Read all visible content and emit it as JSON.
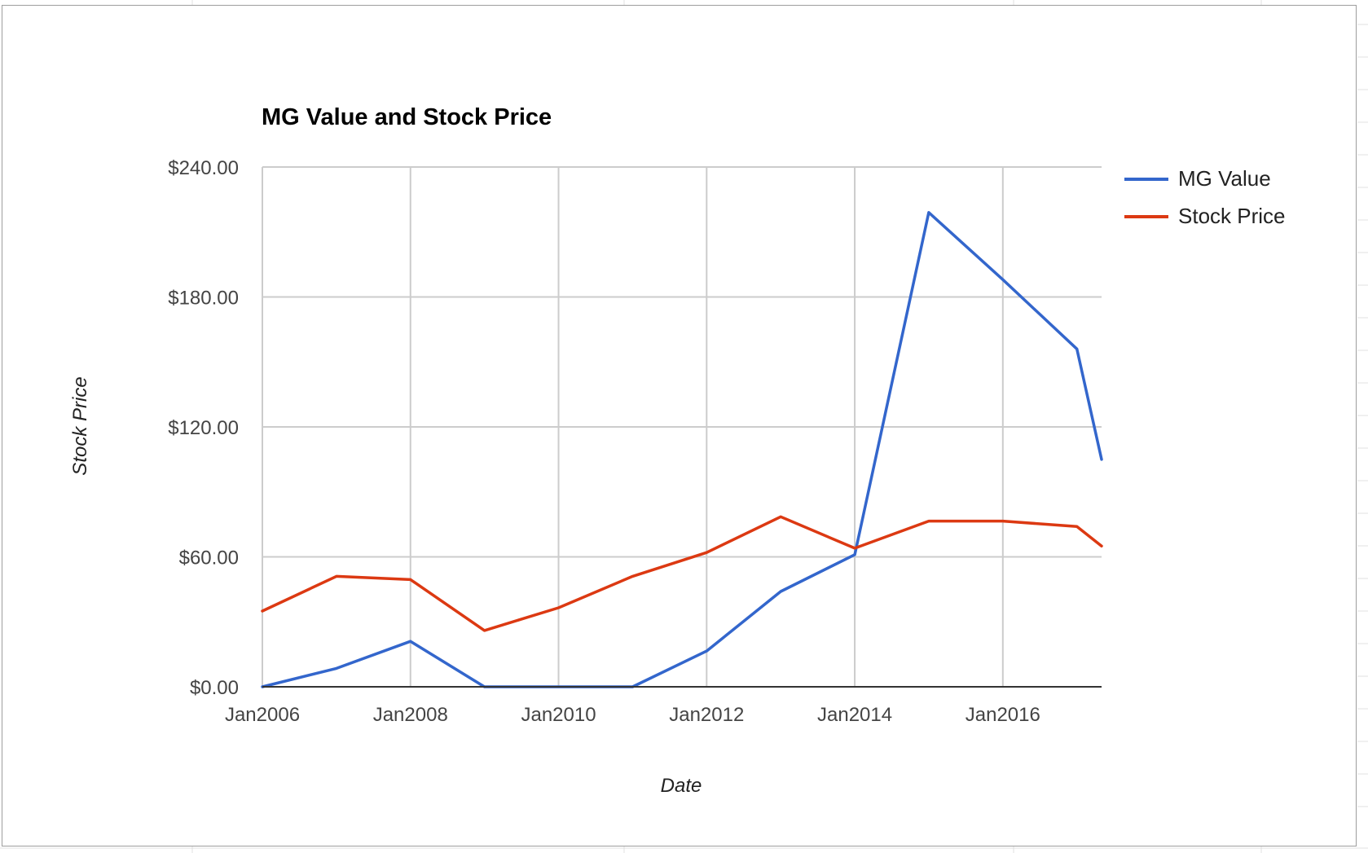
{
  "chart_data": {
    "type": "line",
    "title": "MG Value and Stock Price",
    "xlabel": "Date",
    "ylabel": "Stock Price",
    "x_ticks": [
      "Jan2006",
      "Jan2008",
      "Jan2010",
      "Jan2012",
      "Jan2014",
      "Jan2016"
    ],
    "y_ticks": [
      "$0.00",
      "$60.00",
      "$120.00",
      "$180.00",
      "$240.00"
    ],
    "ylim": [
      0,
      240
    ],
    "xlim": [
      "2006-01",
      "2017-05"
    ],
    "grid": true,
    "legend_position": "right",
    "x": [
      "2006-01",
      "2007-01",
      "2008-01",
      "2009-01",
      "2010-01",
      "2011-01",
      "2012-01",
      "2013-01",
      "2014-01",
      "2015-01",
      "2016-01",
      "2017-01",
      "2017-05"
    ],
    "series": [
      {
        "name": "MG Value",
        "color": "#3366cc",
        "values": [
          0,
          8.5,
          21,
          0,
          0,
          0,
          16.5,
          44,
          61,
          219,
          188,
          156,
          105
        ]
      },
      {
        "name": "Stock Price",
        "color": "#dc3912",
        "values": [
          35,
          51,
          49.5,
          26,
          36.5,
          51,
          62,
          78.5,
          64,
          76.5,
          76.5,
          74,
          65
        ]
      }
    ]
  }
}
